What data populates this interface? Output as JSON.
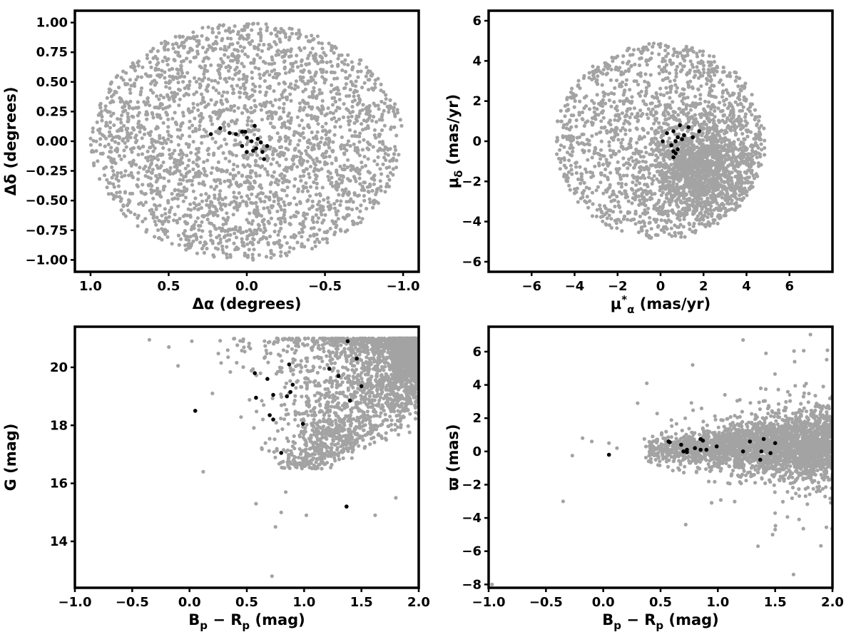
{
  "colors": {
    "field": "#a3a3a3",
    "member": "#000000",
    "axes": "#000000"
  },
  "chart_data": [
    {
      "type": "scatter",
      "panel": "top-left",
      "xlabel": "Δα (degrees)",
      "ylabel": "Δδ (degrees)",
      "xlim": [
        1.1,
        -1.1
      ],
      "ylim": [
        -1.1,
        1.1
      ],
      "x_inverted": true,
      "xticks": [
        1.0,
        0.5,
        0.0,
        -0.5,
        -1.0
      ],
      "xtick_labels": [
        "1.0",
        "0.5",
        "0.0",
        "−0.5",
        "−1.0"
      ],
      "yticks": [
        -1.0,
        -0.75,
        -0.5,
        -0.25,
        0.0,
        0.25,
        0.5,
        0.75,
        1.0
      ],
      "ytick_labels": [
        "−1.00",
        "−0.75",
        "−0.50",
        "−0.25",
        "0.00",
        "0.25",
        "0.50",
        "0.75",
        "1.00"
      ],
      "grid": false,
      "field_distribution": {
        "shape": "disk",
        "center": [
          0.0,
          0.0
        ],
        "radius": 1.0,
        "count": 2600
      },
      "members": [
        [
          0.23,
          0.06
        ],
        [
          0.17,
          0.11
        ],
        [
          0.11,
          0.07
        ],
        [
          0.07,
          0.06
        ],
        [
          0.03,
          0.08
        ],
        [
          0.01,
          0.08
        ],
        [
          -0.05,
          0.13
        ],
        [
          0.0,
          0.03
        ],
        [
          -0.07,
          0.02
        ],
        [
          -0.03,
          0.0
        ],
        [
          -0.09,
          -0.01
        ],
        [
          0.03,
          -0.04
        ],
        [
          -0.13,
          -0.04
        ],
        [
          0.0,
          -0.09
        ],
        [
          -0.04,
          -0.08
        ],
        [
          -0.1,
          -0.09
        ],
        [
          -0.11,
          -0.15
        ],
        [
          -0.06,
          -0.06
        ]
      ]
    },
    {
      "type": "scatter",
      "panel": "top-right",
      "xlabel": "μ*α (mas/yr)",
      "xlabel_parts": {
        "symbol": "μ",
        "sub": "α",
        "sup": "*",
        "unit": "(mas/yr)"
      },
      "ylabel": "μδ (mas/yr)",
      "ylabel_parts": {
        "symbol": "μ",
        "sub": "δ",
        "unit": "(mas/yr)"
      },
      "xlim": [
        -8.0,
        8.0
      ],
      "ylim": [
        -6.5,
        6.5
      ],
      "xticks": [
        -6,
        -4,
        -2,
        0,
        2,
        4,
        6
      ],
      "xtick_labels": [
        "−6",
        "−4",
        "−2",
        "0",
        "2",
        "4",
        "6"
      ],
      "yticks": [
        -6,
        -4,
        -2,
        0,
        2,
        4,
        6
      ],
      "ytick_labels": [
        "−6",
        "−4",
        "−2",
        "0",
        "2",
        "4",
        "6"
      ],
      "grid": false,
      "field_distribution": {
        "shape": "disk",
        "center": [
          0.0,
          0.0
        ],
        "radius": 4.9,
        "dense_center": [
          2.0,
          -1.5
        ],
        "count": 2800
      },
      "members": [
        [
          0.1,
          0.0
        ],
        [
          0.3,
          0.4
        ],
        [
          0.6,
          0.5
        ],
        [
          0.7,
          0.0
        ],
        [
          0.8,
          0.2
        ],
        [
          0.5,
          -0.2
        ],
        [
          0.6,
          -0.5
        ],
        [
          0.7,
          -0.6
        ],
        [
          0.8,
          -0.4
        ],
        [
          0.6,
          -0.8
        ],
        [
          1.1,
          0.3
        ],
        [
          1.3,
          0.7
        ],
        [
          1.5,
          0.2
        ],
        [
          1.8,
          0.5
        ],
        [
          0.9,
          0.8
        ],
        [
          1.0,
          0.1
        ]
      ]
    },
    {
      "type": "scatter",
      "panel": "bottom-left",
      "xlabel": "Bp − Rp (mag)",
      "xlabel_parts": {
        "a": "B",
        "a_sub": "p",
        "b": "R",
        "b_sub": "p",
        "unit": "(mag)"
      },
      "ylabel": "G (mag)",
      "xlim": [
        -1.0,
        2.0
      ],
      "ylim": [
        12.4,
        21.4
      ],
      "xticks": [
        -1.0,
        -0.5,
        0.0,
        0.5,
        1.0,
        1.5,
        2.0
      ],
      "xtick_labels": [
        "−1.0",
        "−0.5",
        "0.0",
        "0.5",
        "1.0",
        "1.5",
        "2.0"
      ],
      "yticks": [
        14,
        16,
        18,
        20
      ],
      "ytick_labels": [
        "14",
        "16",
        "18",
        "20"
      ],
      "grid": false,
      "field_distribution": {
        "shape": "cmd-fan",
        "count": 2600
      },
      "field_outliers": [
        [
          -0.35,
          20.95
        ],
        [
          -0.18,
          20.7
        ],
        [
          -0.1,
          20.05
        ],
        [
          0.02,
          20.9
        ],
        [
          0.12,
          16.4
        ],
        [
          0.58,
          15.3
        ],
        [
          0.72,
          12.8
        ],
        [
          0.75,
          14.5
        ],
        [
          0.8,
          15.0
        ],
        [
          0.84,
          15.7
        ],
        [
          1.02,
          14.9
        ],
        [
          1.62,
          14.9
        ],
        [
          1.8,
          15.5
        ],
        [
          0.2,
          19.1
        ]
      ],
      "members": [
        [
          0.05,
          18.5
        ],
        [
          0.57,
          19.8
        ],
        [
          0.58,
          18.95
        ],
        [
          0.68,
          19.6
        ],
        [
          0.7,
          18.35
        ],
        [
          0.73,
          18.2
        ],
        [
          0.73,
          19.05
        ],
        [
          0.8,
          17.05
        ],
        [
          0.85,
          19.0
        ],
        [
          0.87,
          20.1
        ],
        [
          0.88,
          19.15
        ],
        [
          0.9,
          19.4
        ],
        [
          0.99,
          18.05
        ],
        [
          1.22,
          19.95
        ],
        [
          1.3,
          19.7
        ],
        [
          1.38,
          20.9
        ],
        [
          1.4,
          18.85
        ],
        [
          1.46,
          20.3
        ],
        [
          1.5,
          19.35
        ],
        [
          1.37,
          15.2
        ]
      ]
    },
    {
      "type": "scatter",
      "panel": "bottom-right",
      "xlabel": "Bp − Rp (mag)",
      "xlabel_parts": {
        "a": "B",
        "a_sub": "p",
        "b": "R",
        "b_sub": "p",
        "unit": "(mag)"
      },
      "ylabel": "ϖ (mas)",
      "xlim": [
        -1.0,
        2.0
      ],
      "ylim": [
        -8.2,
        7.5
      ],
      "xticks": [
        -1.0,
        -0.5,
        0.0,
        0.5,
        1.0,
        1.5,
        2.0
      ],
      "xtick_labels": [
        "−1.0",
        "−0.5",
        "0.0",
        "0.5",
        "1.0",
        "1.5",
        "2.0"
      ],
      "yticks": [
        -8,
        -6,
        -4,
        -2,
        0,
        2,
        4,
        6
      ],
      "ytick_labels": [
        "−8",
        "−6",
        "−4",
        "−2",
        "0",
        "2",
        "4",
        "6"
      ],
      "grid": false,
      "field_distribution": {
        "shape": "band",
        "center_y": 0.2,
        "count": 2600
      },
      "field_outliers": [
        [
          -0.97,
          -8.0
        ],
        [
          -0.35,
          -3.0
        ],
        [
          -0.27,
          -0.25
        ],
        [
          -0.18,
          0.8
        ],
        [
          -0.1,
          0.6
        ],
        [
          0.05,
          0.5
        ],
        [
          0.12,
          0.2
        ],
        [
          0.3,
          2.9
        ],
        [
          0.38,
          4.1
        ],
        [
          0.72,
          -4.4
        ],
        [
          0.78,
          5.2
        ],
        [
          1.22,
          6.7
        ],
        [
          1.35,
          -5.7
        ],
        [
          1.42,
          5.9
        ],
        [
          1.5,
          -4.7
        ],
        [
          1.66,
          -7.4
        ],
        [
          1.67,
          5.4
        ],
        [
          1.92,
          3.9
        ]
      ],
      "members": [
        [
          0.05,
          -0.2
        ],
        [
          0.57,
          0.6
        ],
        [
          0.58,
          0.55
        ],
        [
          0.68,
          0.4
        ],
        [
          0.7,
          0.0
        ],
        [
          0.73,
          0.1
        ],
        [
          0.73,
          -0.05
        ],
        [
          0.8,
          0.2
        ],
        [
          0.85,
          0.1
        ],
        [
          0.85,
          0.75
        ],
        [
          0.87,
          0.65
        ],
        [
          0.9,
          0.1
        ],
        [
          0.99,
          0.3
        ],
        [
          1.22,
          0.0
        ],
        [
          1.28,
          0.6
        ],
        [
          1.37,
          -0.5
        ],
        [
          1.38,
          0.0
        ],
        [
          1.4,
          0.75
        ],
        [
          1.46,
          -0.1
        ],
        [
          1.5,
          0.5
        ]
      ]
    }
  ]
}
